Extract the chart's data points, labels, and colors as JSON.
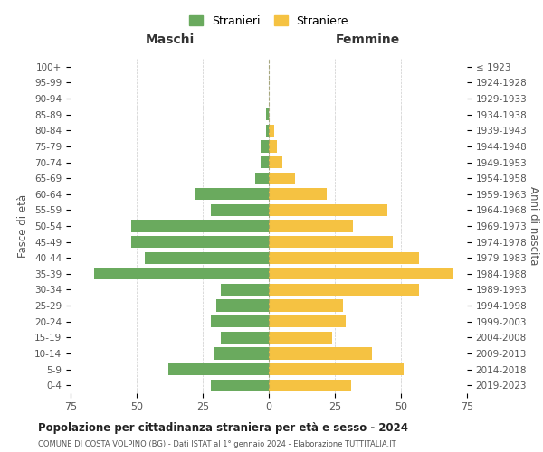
{
  "age_groups": [
    "0-4",
    "5-9",
    "10-14",
    "15-19",
    "20-24",
    "25-29",
    "30-34",
    "35-39",
    "40-44",
    "45-49",
    "50-54",
    "55-59",
    "60-64",
    "65-69",
    "70-74",
    "75-79",
    "80-84",
    "85-89",
    "90-94",
    "95-99",
    "100+"
  ],
  "birth_years": [
    "2019-2023",
    "2014-2018",
    "2009-2013",
    "2004-2008",
    "1999-2003",
    "1994-1998",
    "1989-1993",
    "1984-1988",
    "1979-1983",
    "1974-1978",
    "1969-1973",
    "1964-1968",
    "1959-1963",
    "1954-1958",
    "1949-1953",
    "1944-1948",
    "1939-1943",
    "1934-1938",
    "1929-1933",
    "1924-1928",
    "≤ 1923"
  ],
  "males": [
    22,
    38,
    21,
    18,
    22,
    20,
    18,
    66,
    47,
    52,
    52,
    22,
    28,
    5,
    3,
    3,
    1,
    1,
    0,
    0,
    0
  ],
  "females": [
    31,
    51,
    39,
    24,
    29,
    28,
    57,
    70,
    57,
    47,
    32,
    45,
    22,
    10,
    5,
    3,
    2,
    0,
    0,
    0,
    0
  ],
  "male_color": "#6aaa5e",
  "female_color": "#f5c242",
  "title": "Popolazione per cittadinanza straniera per età e sesso - 2024",
  "subtitle": "COMUNE DI COSTA VOLPINO (BG) - Dati ISTAT al 1° gennaio 2024 - Elaborazione TUTTITALIA.IT",
  "xlabel_left": "Maschi",
  "xlabel_right": "Femmine",
  "ylabel_left": "Fasce di età",
  "ylabel_right": "Anni di nascita",
  "legend_males": "Stranieri",
  "legend_females": "Straniere",
  "xlim": 75,
  "background_color": "#ffffff",
  "grid_color": "#cccccc"
}
